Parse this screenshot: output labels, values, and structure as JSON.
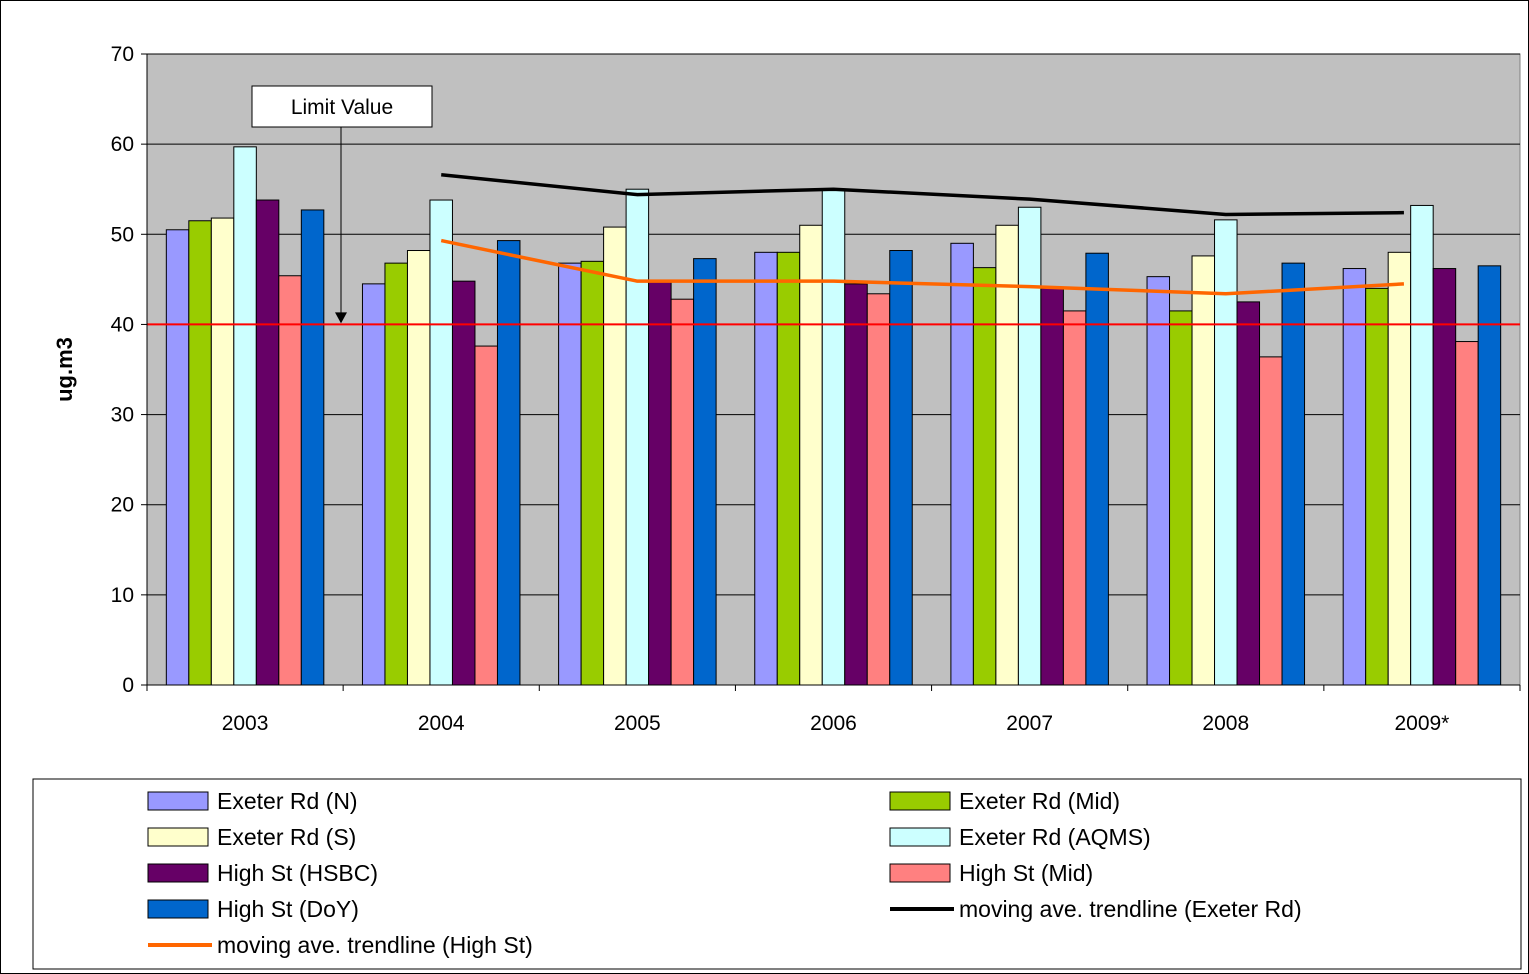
{
  "chart_data": {
    "type": "bar",
    "title": "",
    "xlabel": "",
    "ylabel": "ug.m3",
    "ylim": [
      0,
      70
    ],
    "yticks": [
      0,
      10,
      20,
      30,
      40,
      50,
      60,
      70
    ],
    "grid": true,
    "legend_position": "bottom",
    "categories": [
      "2003",
      "2004",
      "2005",
      "2006",
      "2007",
      "2008",
      "2009*"
    ],
    "series": [
      {
        "name": "Exeter Rd (N)",
        "color": "#9999FF",
        "values": [
          50.5,
          44.5,
          46.8,
          48.0,
          49.0,
          45.3,
          46.2
        ]
      },
      {
        "name": "Exeter Rd (Mid)",
        "color": "#99CC00",
        "values": [
          51.5,
          46.8,
          47.0,
          48.0,
          46.3,
          41.5,
          44.0
        ]
      },
      {
        "name": "Exeter Rd (S)",
        "color": "#FFFFCC",
        "values": [
          51.8,
          48.2,
          50.8,
          51.0,
          51.0,
          47.6,
          48.0
        ]
      },
      {
        "name": "Exeter Rd (AQMS)",
        "color": "#CCFFFF",
        "values": [
          59.7,
          53.8,
          55.0,
          55.0,
          53.0,
          51.6,
          53.2
        ]
      },
      {
        "name": "High St (HSBC)",
        "color": "#660066",
        "values": [
          53.8,
          44.8,
          44.7,
          44.5,
          44.0,
          42.5,
          46.2
        ]
      },
      {
        "name": "High St (Mid)",
        "color": "#FF8080",
        "values": [
          45.4,
          37.6,
          42.8,
          43.4,
          41.5,
          36.4,
          38.1
        ]
      },
      {
        "name": "High St (DoY)",
        "color": "#0066CC",
        "values": [
          52.7,
          49.3,
          47.3,
          48.2,
          47.9,
          46.8,
          46.5
        ]
      }
    ],
    "lines": [
      {
        "name": "moving ave. trendline (Exeter Rd)",
        "color": "#000000",
        "values": [
          null,
          56.6,
          54.4,
          55.0,
          53.9,
          52.2,
          52.4
        ]
      },
      {
        "name": "moving ave. trendline (High St)",
        "color": "#FF6600",
        "values": [
          null,
          49.3,
          44.8,
          44.8,
          44.2,
          43.4,
          44.5
        ]
      }
    ],
    "reference_line": {
      "value": 40,
      "color": "#FF0000"
    },
    "annotation": {
      "text": "Limit Value",
      "target_value": 40
    }
  }
}
